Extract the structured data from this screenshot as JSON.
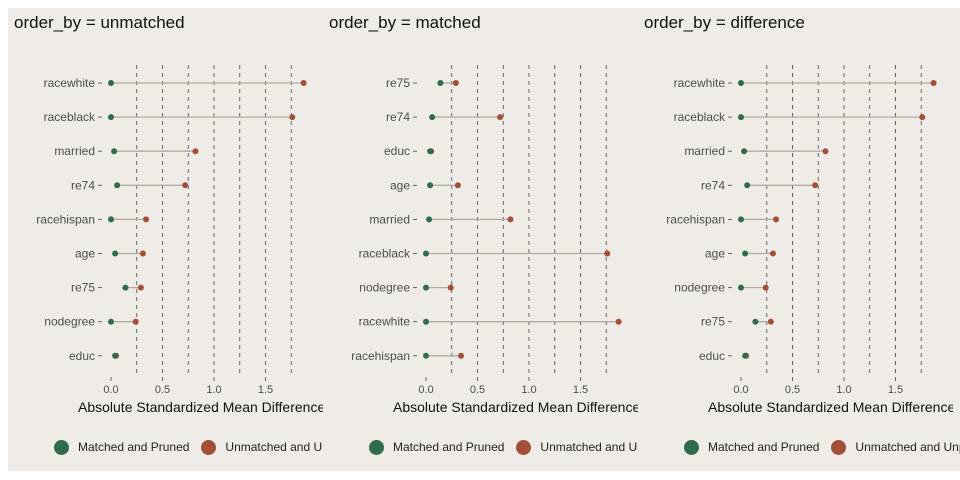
{
  "colors": {
    "panel_background": "#efebe7",
    "matched": "#2e6b4f",
    "unmatched": "#a34f37",
    "segment": "#b3aba3",
    "gridline": "#555555"
  },
  "panel_titles": [
    "order_by = unmatched",
    "order_by = matched",
    "order_by = difference"
  ],
  "x_axis_label": "Absolute Standardized Mean Difference",
  "legend": [
    "Matched and Pruned",
    "Unmatched and Unpruned"
  ],
  "chart_data": [
    {
      "type": "dot",
      "title": "order_by = unmatched",
      "xlabel": "Absolute Standardized Mean Difference",
      "xlim": [
        0,
        1.9
      ],
      "x_ticks": [
        "0.0",
        "0.5",
        "1.0",
        "1.5"
      ],
      "dashed_gridlines": [
        0.25,
        0.5,
        0.75,
        1.0,
        1.25,
        1.5,
        1.75
      ],
      "categories": [
        "racewhite",
        "raceblack",
        "married",
        "re74",
        "racehispan",
        "age",
        "re75",
        "nodegree",
        "educ"
      ],
      "series": [
        {
          "name": "Matched and Pruned",
          "values": [
            0.0,
            0.0,
            0.03,
            0.06,
            0.0,
            0.04,
            0.14,
            0.0,
            0.04
          ]
        },
        {
          "name": "Unmatched and Unpruned",
          "values": [
            1.87,
            1.76,
            0.82,
            0.72,
            0.34,
            0.31,
            0.29,
            0.24,
            0.05
          ]
        }
      ],
      "legend": "bottom"
    },
    {
      "type": "dot",
      "title": "order_by = matched",
      "xlabel": "Absolute Standardized Mean Difference",
      "xlim": [
        0,
        1.9
      ],
      "x_ticks": [
        "0.0",
        "0.5",
        "1.0",
        "1.5"
      ],
      "dashed_gridlines": [
        0.25,
        0.5,
        0.75,
        1.0,
        1.25,
        1.5,
        1.75
      ],
      "categories": [
        "re75",
        "re74",
        "educ",
        "age",
        "married",
        "raceblack",
        "nodegree",
        "racewhite",
        "racehispan"
      ],
      "series": [
        {
          "name": "Matched and Pruned",
          "values": [
            0.14,
            0.06,
            0.04,
            0.04,
            0.03,
            0.0,
            0.0,
            0.0,
            0.0
          ]
        },
        {
          "name": "Unmatched and Unpruned",
          "values": [
            0.29,
            0.72,
            0.05,
            0.31,
            0.82,
            1.76,
            0.24,
            1.87,
            0.34
          ]
        }
      ],
      "legend": "bottom"
    },
    {
      "type": "dot",
      "title": "order_by = difference",
      "xlabel": "Absolute Standardized Mean Difference",
      "xlim": [
        0,
        1.9
      ],
      "x_ticks": [
        "0.0",
        "0.5",
        "1.0",
        "1.5"
      ],
      "dashed_gridlines": [
        0.25,
        0.5,
        0.75,
        1.0,
        1.25,
        1.5,
        1.75
      ],
      "categories": [
        "racewhite",
        "raceblack",
        "married",
        "re74",
        "racehispan",
        "age",
        "nodegree",
        "re75",
        "educ"
      ],
      "series": [
        {
          "name": "Matched and Pruned",
          "values": [
            0.0,
            0.0,
            0.03,
            0.06,
            0.0,
            0.04,
            0.0,
            0.14,
            0.04
          ]
        },
        {
          "name": "Unmatched and Unpruned",
          "values": [
            1.87,
            1.76,
            0.82,
            0.72,
            0.34,
            0.31,
            0.24,
            0.29,
            0.05
          ]
        }
      ],
      "legend": "bottom"
    }
  ]
}
